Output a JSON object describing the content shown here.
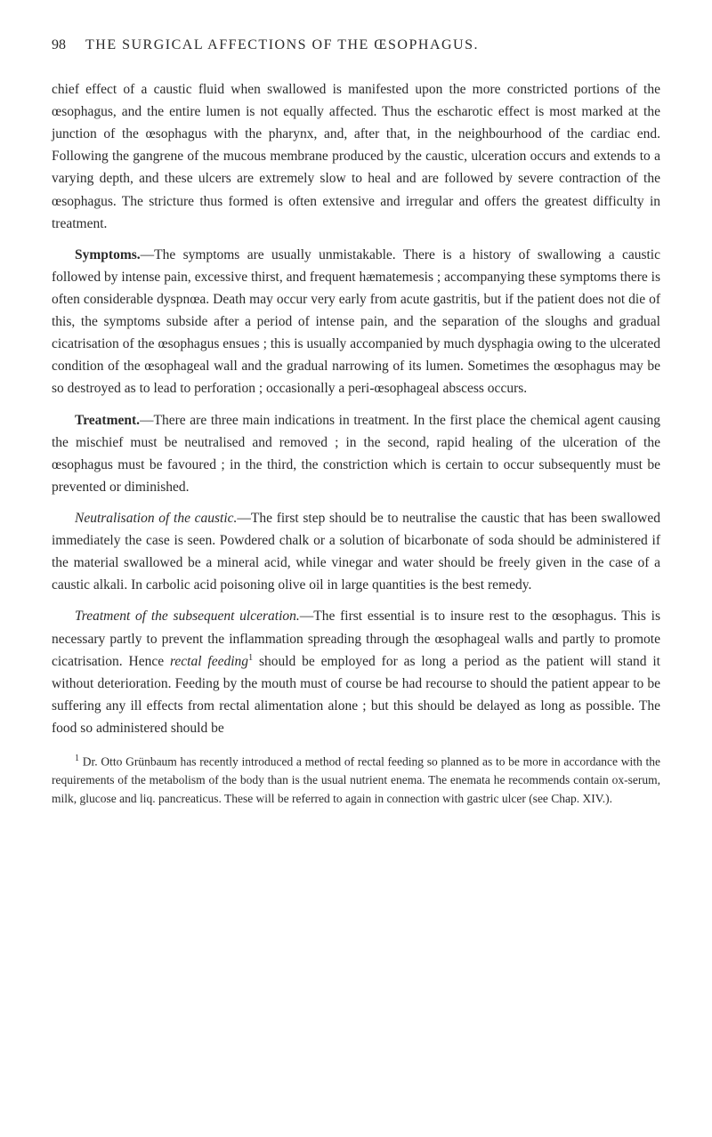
{
  "header": {
    "page_number": "98",
    "title": "THE SURGICAL AFFECTIONS OF THE ŒSOPHAGUS."
  },
  "paragraphs": {
    "p1": "chief effect of a caustic fluid when swallowed is manifested upon the more constricted portions of the œsophagus, and the entire lumen is not equally affected. Thus the escharotic effect is most marked at the junction of the œsophagus with the pharynx, and, after that, in the neighbourhood of the cardiac end. Following the gangrene of the mucous membrane produced by the caustic, ulceration occurs and extends to a varying depth, and these ulcers are extremely slow to heal and are followed by severe contraction of the œsophagus. The stricture thus formed is often extensive and irregular and offers the greatest difficulty in treatment.",
    "p2_label": "Symptoms.",
    "p2_body": "—The symptoms are usually unmistakable. There is a history of swallowing a caustic followed by intense pain, excessive thirst, and frequent hæmatemesis ; accompanying these symptoms there is often considerable dyspnœa. Death may occur very early from acute gastritis, but if the patient does not die of this, the symptoms subside after a period of intense pain, and the separation of the sloughs and gradual cicatrisation of the œsophagus ensues ; this is usually accompanied by much dysphagia owing to the ulcerated condition of the œsophageal wall and the gradual narrowing of its lumen. Sometimes the œsophagus may be so destroyed as to lead to perforation ; occasionally a peri-œsophageal abscess occurs.",
    "p3_label": "Treatment.",
    "p3_body": "—There are three main indications in treatment. In the first place the chemical agent causing the mischief must be neutralised and removed ; in the second, rapid healing of the ulceration of the œsophagus must be favoured ; in the third, the constriction which is certain to occur subsequently must be prevented or diminished.",
    "p4_italic": "Neutralisation of the caustic.",
    "p4_body": "—The first step should be to neutralise the caustic that has been swallowed immediately the case is seen. Powdered chalk or a solution of bicarbonate of soda should be administered if the material swallowed be a mineral acid, while vinegar and water should be freely given in the case of a caustic alkali. In carbolic acid poisoning olive oil in large quantities is the best remedy.",
    "p5_italic": "Treatment of the subsequent ulceration.",
    "p5_body_a": "—The first essential is to insure rest to the œsophagus. This is necessary partly to prevent the inflammation spreading through the œsophageal walls and partly to promote cicatrisation. Hence ",
    "p5_italic2": "rectal feeding",
    "p5_sup": "1",
    "p5_body_b": " should be employed for as long a period as the patient will stand it without deterioration. Feeding by the mouth must of course be had recourse to should the patient appear to be suffering any ill effects from rectal alimentation alone ; but this should be delayed as long as possible. The food so administered should be"
  },
  "footnote": {
    "sup": "1",
    "text": " Dr. Otto Grünbaum has recently introduced a method of rectal feeding so planned as to be more in accordance with the requirements of the metabolism of the body than is the usual nutrient enema. The enemata he recommends contain ox-serum, milk, glucose and liq. pancreaticus. These will be referred to again in connection with gastric ulcer (see Chap. XIV.)."
  }
}
